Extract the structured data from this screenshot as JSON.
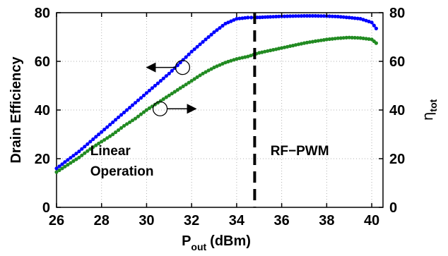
{
  "chart_data": {
    "type": "line",
    "xlabel_main": "P",
    "xlabel_sub": "out",
    "xlabel_unit": "(dBm)",
    "ylabel_left": "Drain Efficiency",
    "ylabel_right_main": "η",
    "ylabel_right_sub": "tot",
    "xlim": [
      26,
      40.5
    ],
    "ylim_left": [
      0,
      80
    ],
    "ylim_right": [
      0,
      80
    ],
    "x_ticks": [
      26,
      28,
      30,
      32,
      34,
      36,
      38,
      40
    ],
    "y_ticks": [
      0,
      20,
      40,
      60,
      80
    ],
    "grid": true,
    "series": [
      {
        "color": "#0000ff",
        "axis": "left",
        "x": [
          26.0,
          26.5,
          27.0,
          27.5,
          28.0,
          28.5,
          29.0,
          29.5,
          30.0,
          30.5,
          31.0,
          31.5,
          32.0,
          32.5,
          33.0,
          33.5,
          34.0,
          34.5,
          34.8,
          35.5,
          36.0,
          36.5,
          37.0,
          37.5,
          38.0,
          38.5,
          39.0,
          39.5,
          40.0,
          40.2
        ],
        "values": [
          16,
          19.5,
          23,
          27,
          31,
          35,
          39,
          43,
          47,
          51,
          55,
          59.5,
          64,
          68,
          72,
          75.5,
          77.5,
          78,
          78,
          78.3,
          78.5,
          78.6,
          78.7,
          78.7,
          78.6,
          78.4,
          78,
          77.5,
          76,
          73.5
        ]
      },
      {
        "color": "#228b22",
        "axis": "right",
        "x": [
          26.0,
          26.5,
          27.0,
          27.5,
          28.0,
          28.5,
          29.0,
          29.5,
          30.0,
          30.5,
          31.0,
          31.5,
          32.0,
          32.5,
          33.0,
          33.5,
          34.0,
          34.5,
          35.0,
          35.5,
          36.0,
          36.5,
          37.0,
          37.5,
          38.0,
          38.5,
          39.0,
          39.5,
          40.0,
          40.2
        ],
        "values": [
          14.5,
          17.5,
          20.5,
          24,
          27,
          30,
          33.5,
          36.5,
          40,
          43,
          46,
          49,
          52,
          55,
          57.5,
          59.5,
          61,
          62,
          63.5,
          64.5,
          65.5,
          66.5,
          67.5,
          68.3,
          69,
          69.5,
          69.8,
          69.6,
          69,
          67.5
        ]
      }
    ],
    "divider_x": 34.8,
    "annotations": {
      "linear_line1": "Linear",
      "linear_line2": "Operation",
      "rfpwm": "RF−PWM"
    },
    "callouts": [
      {
        "x": 31.6,
        "y": 57.5,
        "direction": "left"
      },
      {
        "x": 30.6,
        "y": 40.5,
        "direction": "right"
      }
    ]
  }
}
